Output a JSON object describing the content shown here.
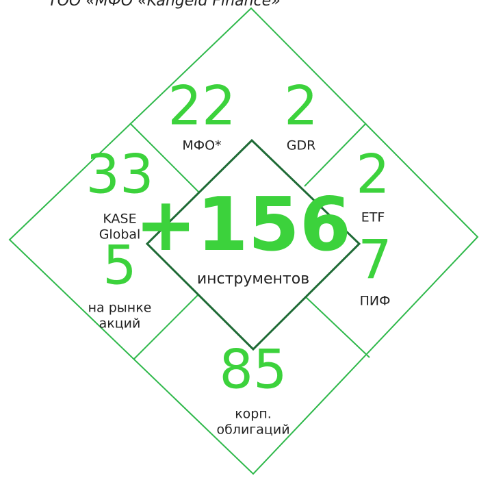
{
  "header": {
    "title": "ТОО «МФО «Kangeld Finance»"
  },
  "center": {
    "value": "+156",
    "label": "инструментов"
  },
  "items": [
    {
      "value": 22,
      "label": [
        "МФО*"
      ]
    },
    {
      "value": 2,
      "label": [
        "GDR"
      ]
    },
    {
      "value": 33,
      "label": [
        "KASE",
        "Global"
      ]
    },
    {
      "value": 5,
      "label": [
        "на рынке",
        "акций"
      ]
    },
    {
      "value": 2,
      "label": [
        "ETF"
      ]
    },
    {
      "value": 7,
      "label": [
        "ПИФ"
      ]
    },
    {
      "value": 85,
      "label": [
        "корп.",
        "облигаций"
      ]
    }
  ]
}
